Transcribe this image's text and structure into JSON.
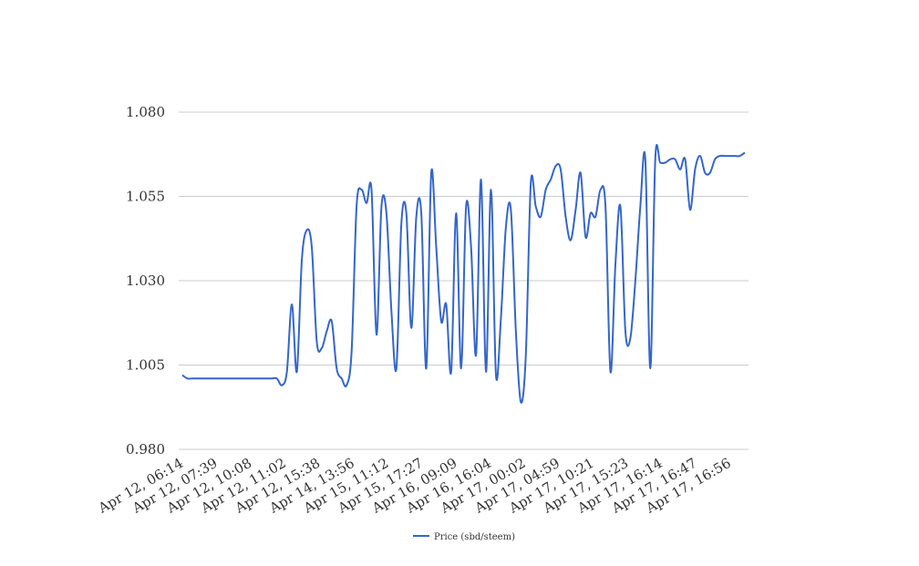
{
  "chart_data": {
    "type": "line",
    "title": "",
    "xlabel": "",
    "ylabel": "",
    "ylim": [
      0.98,
      1.08
    ],
    "yticks": [
      "0.980",
      "1.005",
      "1.030",
      "1.055",
      "1.080"
    ],
    "xtick_labels": [
      "Apr 12, 06:14",
      "Apr 12, 07:39",
      "Apr 12, 10:08",
      "Apr 12, 11:02",
      "Apr 12, 15:38",
      "Apr 14, 13:56",
      "Apr 15, 11:12",
      "Apr 15, 17:27",
      "Apr 16, 09:09",
      "Apr 16, 16:04",
      "Apr 17, 00:02",
      "Apr 17, 04:59",
      "Apr 17, 10:21",
      "Apr 17, 15:23",
      "Apr 17, 16:14",
      "Apr 17, 16:47",
      "Apr 17, 16:56"
    ],
    "grid": true,
    "legend_position": "bottom",
    "series": [
      {
        "name": "Price (sbd/steem)",
        "color": "#3366cc",
        "values": [
          1.002,
          1.001,
          1.001,
          1.001,
          1.001,
          1.001,
          1.001,
          1.001,
          1.001,
          1.001,
          1.001,
          1.001,
          1.001,
          1.001,
          1.001,
          1.001,
          1.001,
          1.001,
          1.001,
          1.001,
          0.999,
          1.003,
          1.023,
          1.003,
          1.036,
          1.045,
          1.04,
          1.012,
          1.01,
          1.015,
          1.018,
          1.004,
          1.001,
          0.999,
          1.009,
          1.052,
          1.057,
          1.053,
          1.057,
          1.014,
          1.052,
          1.05,
          1.021,
          1.004,
          1.047,
          1.05,
          1.016,
          1.049,
          1.05,
          1.004,
          1.062,
          1.04,
          1.018,
          1.023,
          1.003,
          1.05,
          1.004,
          1.052,
          1.04,
          1.008,
          1.06,
          1.003,
          1.057,
          1.002,
          1.019,
          1.046,
          1.051,
          1.015,
          0.994,
          1.008,
          1.059,
          1.052,
          1.049,
          1.057,
          1.06,
          1.064,
          1.063,
          1.049,
          1.042,
          1.051,
          1.062,
          1.043,
          1.05,
          1.049,
          1.057,
          1.052,
          1.003,
          1.035,
          1.052,
          1.015,
          1.013,
          1.03,
          1.052,
          1.066,
          1.004,
          1.066,
          1.065,
          1.065,
          1.066,
          1.066,
          1.063,
          1.066,
          1.051,
          1.063,
          1.067,
          1.062,
          1.062,
          1.066,
          1.067,
          1.067,
          1.067,
          1.067,
          1.067,
          1.068
        ]
      }
    ]
  }
}
